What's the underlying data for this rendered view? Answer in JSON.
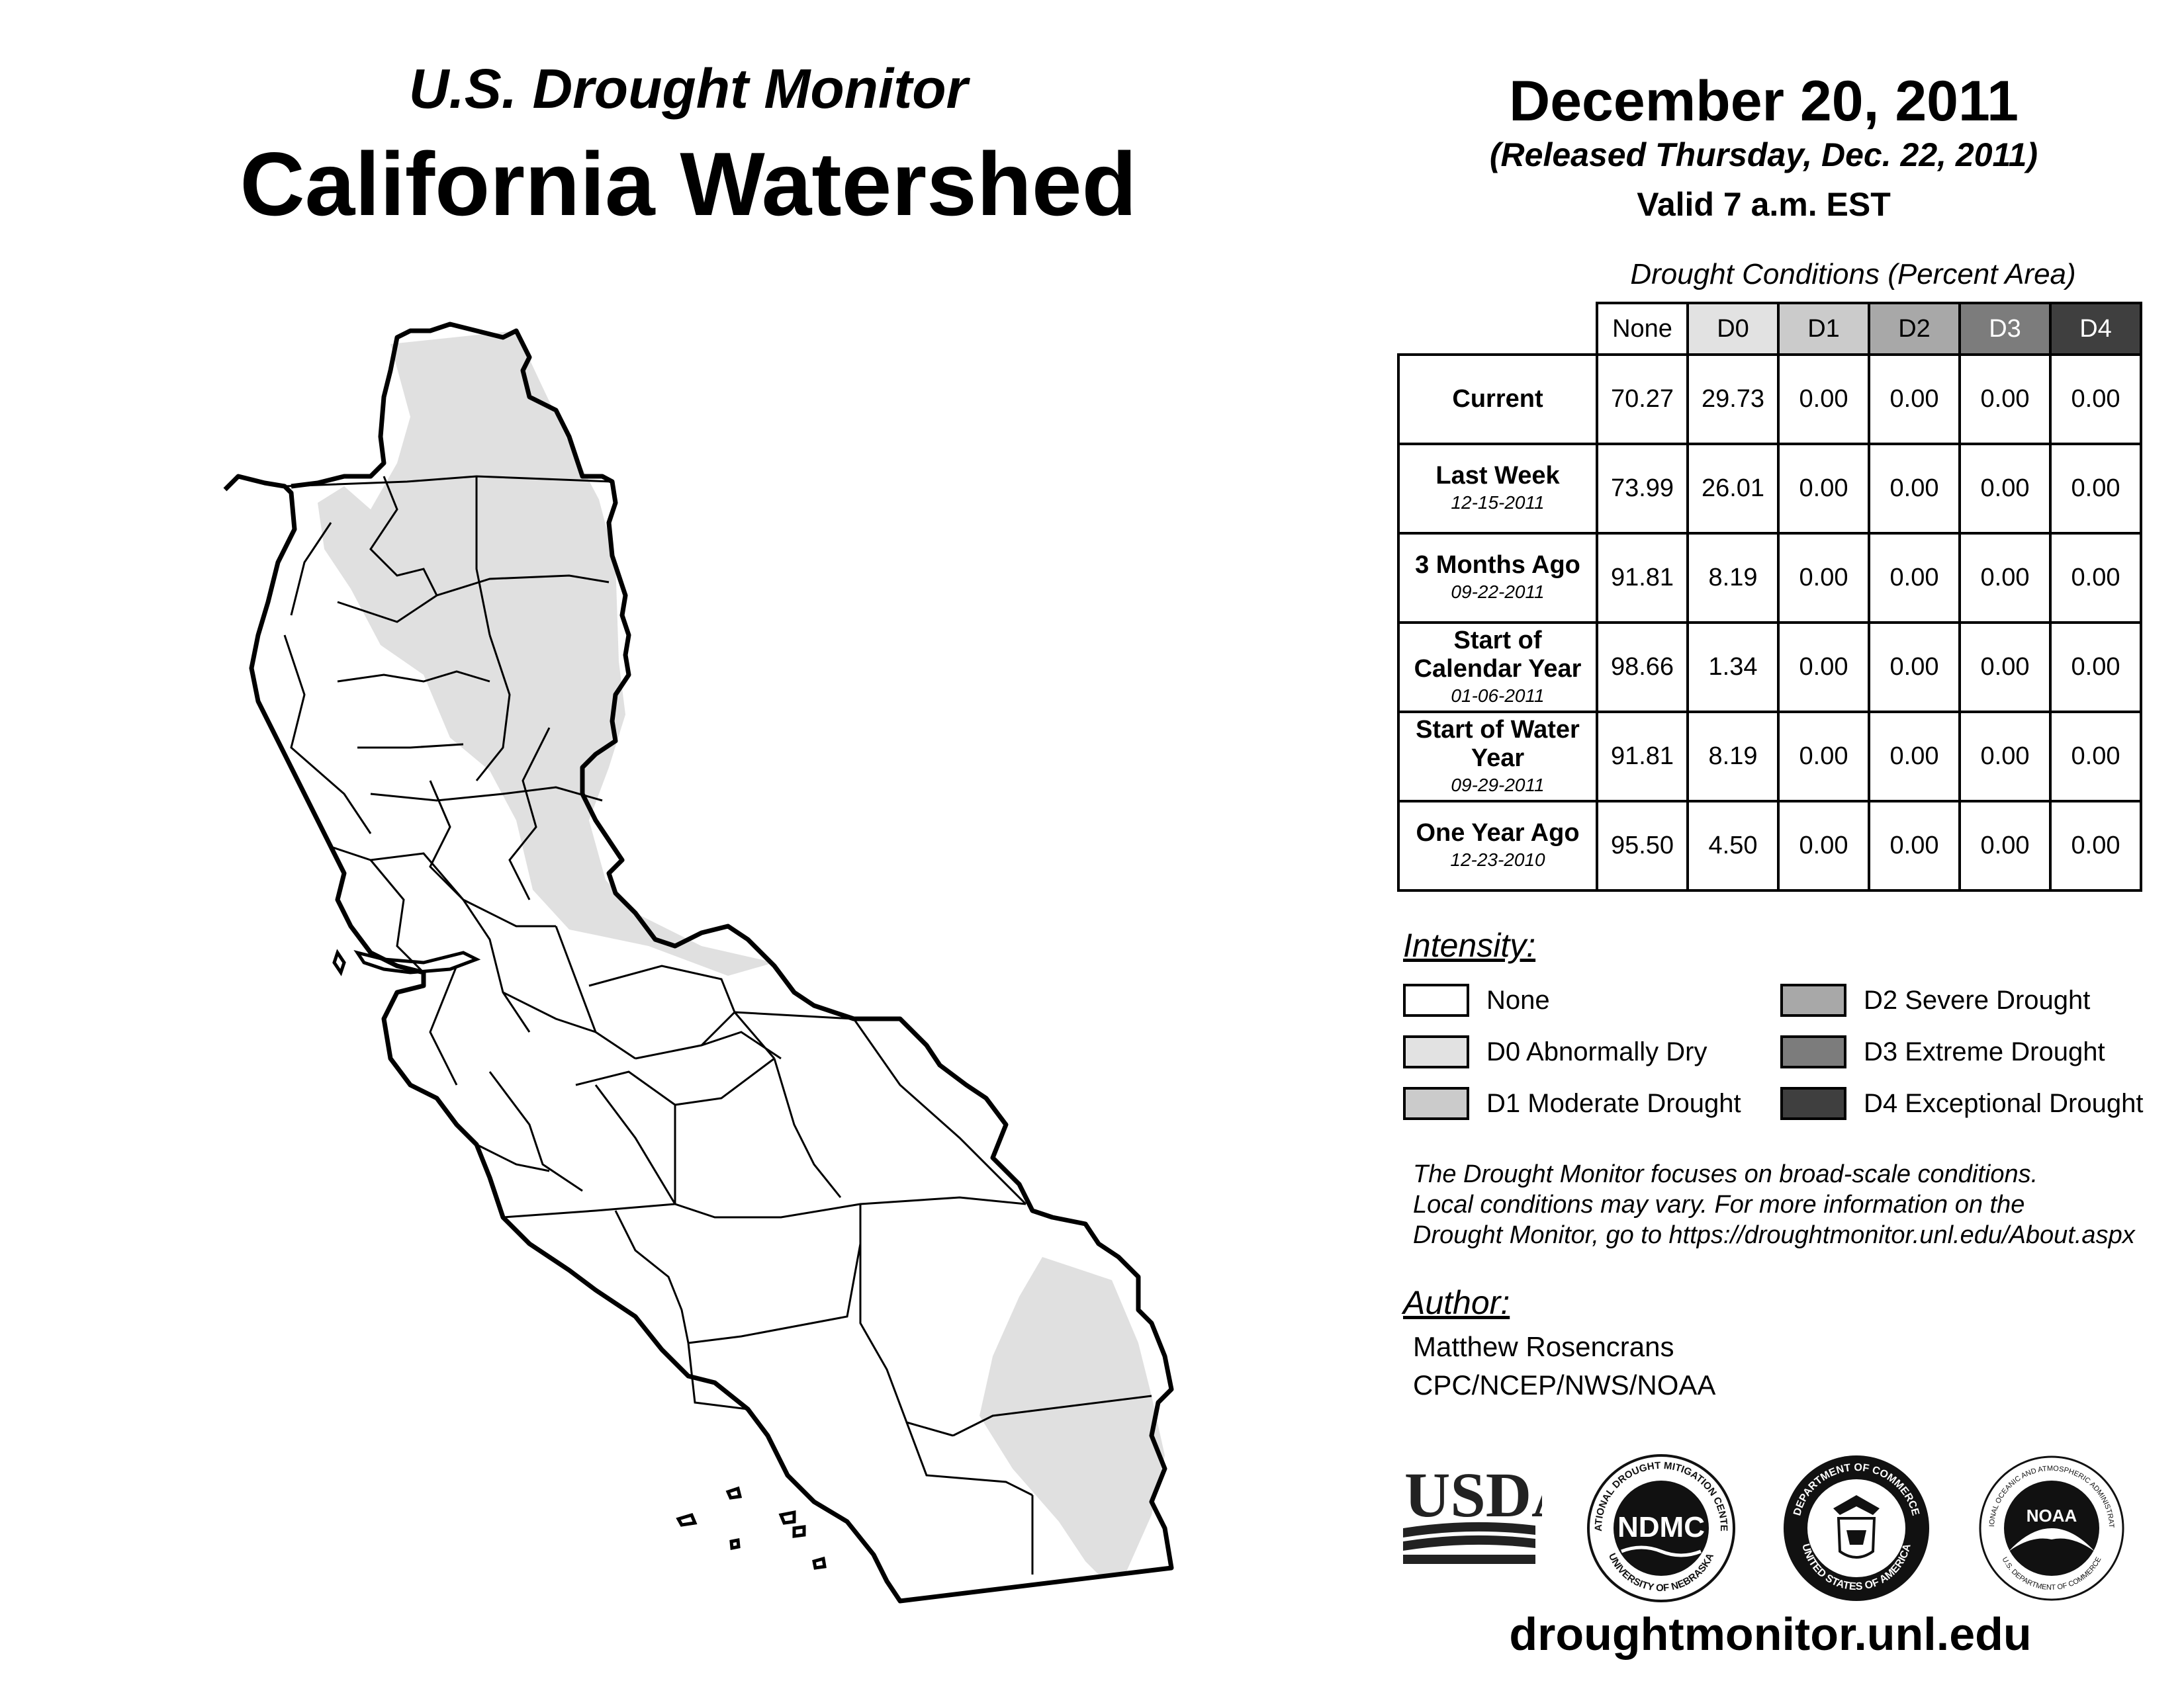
{
  "header": {
    "subtitle": "U.S. Drought Monitor",
    "title": "California Watershed",
    "date": "December 20, 2011",
    "released": "(Released Thursday, Dec. 22, 2011)",
    "valid": "Valid 7 a.m. EST"
  },
  "table": {
    "caption": "Drought Conditions (Percent Area)",
    "columns": [
      "None",
      "D0",
      "D1",
      "D2",
      "D3",
      "D4"
    ],
    "rows": [
      {
        "label": "Current",
        "date": "",
        "values": [
          "70.27",
          "29.73",
          "0.00",
          "0.00",
          "0.00",
          "0.00"
        ]
      },
      {
        "label": "Last Week",
        "date": "12-15-2011",
        "values": [
          "73.99",
          "26.01",
          "0.00",
          "0.00",
          "0.00",
          "0.00"
        ]
      },
      {
        "label": "3 Months Ago",
        "date": "09-22-2011",
        "values": [
          "91.81",
          "8.19",
          "0.00",
          "0.00",
          "0.00",
          "0.00"
        ]
      },
      {
        "label": "Start of Calendar Year",
        "date": "01-06-2011",
        "values": [
          "98.66",
          "1.34",
          "0.00",
          "0.00",
          "0.00",
          "0.00"
        ]
      },
      {
        "label": "Start of Water Year",
        "date": "09-29-2011",
        "values": [
          "91.81",
          "8.19",
          "0.00",
          "0.00",
          "0.00",
          "0.00"
        ]
      },
      {
        "label": "One Year Ago",
        "date": "12-23-2010",
        "values": [
          "95.50",
          "4.50",
          "0.00",
          "0.00",
          "0.00",
          "0.00"
        ]
      }
    ]
  },
  "legend": {
    "title": "Intensity:",
    "items": [
      {
        "label": "None",
        "color": "#ffffff"
      },
      {
        "label": "D0 Abnormally Dry",
        "color": "#e2e2e2"
      },
      {
        "label": "D1 Moderate Drought",
        "color": "#cbcbcb"
      },
      {
        "label": "D2 Severe Drought",
        "color": "#a8a8a8"
      },
      {
        "label": "D3 Extreme Drought",
        "color": "#7c7c7c"
      },
      {
        "label": "D4 Exceptional Drought",
        "color": "#3f3f3f"
      }
    ]
  },
  "note": {
    "line1": "The Drought Monitor focuses on broad-scale conditions.",
    "line2": "Local conditions may vary. For more information on the",
    "line3": "Drought Monitor, go to https://droughtmonitor.unl.edu/About.aspx"
  },
  "author": {
    "title": "Author:",
    "name": "Matthew Rosencrans",
    "org": "CPC/NCEP/NWS/NOAA"
  },
  "logos": {
    "usda": "USDA",
    "ndmc": "NDMC",
    "ndmc_ring_top": "NATIONAL DROUGHT MITIGATION CENTER",
    "ndmc_ring_bottom": "UNIVERSITY OF NEBRASKA",
    "commerce_ring_top": "DEPARTMENT OF COMMERCE",
    "commerce_ring_bottom": "UNITED STATES OF AMERICA",
    "noaa": "NOAA",
    "noaa_ring_top": "NATIONAL OCEANIC AND ATMOSPHERIC ADMINISTRATION",
    "noaa_ring_bottom": "U.S. DEPARTMENT OF COMMERCE"
  },
  "website": "droughtmonitor.unl.edu",
  "map": {
    "region": "California Watershed",
    "shading": "D0 Abnormally Dry"
  }
}
